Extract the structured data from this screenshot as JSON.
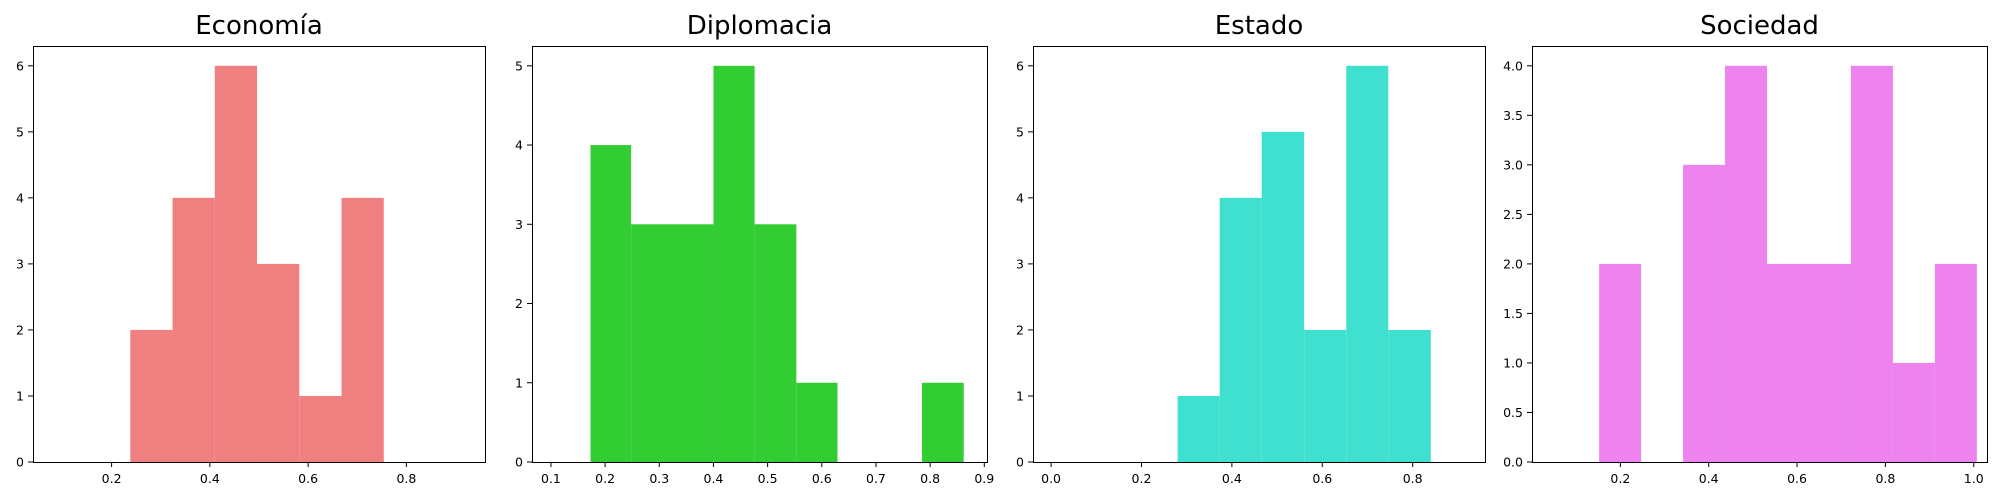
{
  "chart_data": [
    {
      "type": "bar",
      "subtype": "histogram",
      "title": "Economía",
      "color": "#f08080",
      "xlim": [
        0.04,
        0.96
      ],
      "ylim": [
        0,
        6.3
      ],
      "xticks": [
        0.2,
        0.4,
        0.6,
        0.8
      ],
      "xtick_labels": [
        "0.2",
        "0.4",
        "0.6",
        "0.8"
      ],
      "yticks": [
        0,
        1,
        2,
        3,
        4,
        5,
        6
      ],
      "ytick_labels": [
        "0",
        "1",
        "2",
        "3",
        "4",
        "5",
        "6"
      ],
      "bins": [
        {
          "x0": 0.238,
          "x1": 0.324,
          "count": 2
        },
        {
          "x0": 0.324,
          "x1": 0.41,
          "count": 4
        },
        {
          "x0": 0.41,
          "x1": 0.496,
          "count": 6
        },
        {
          "x0": 0.496,
          "x1": 0.582,
          "count": 3
        },
        {
          "x0": 0.582,
          "x1": 0.668,
          "count": 1
        },
        {
          "x0": 0.668,
          "x1": 0.754,
          "count": 4
        }
      ]
    },
    {
      "type": "bar",
      "subtype": "histogram",
      "title": "Diplomacia",
      "color": "#32cd32",
      "xlim": [
        0.065,
        0.905
      ],
      "ylim": [
        0,
        5.25
      ],
      "xticks": [
        0.1,
        0.2,
        0.3,
        0.4,
        0.5,
        0.6,
        0.7,
        0.8,
        0.9
      ],
      "xtick_labels": [
        "0.1",
        "0.2",
        "0.3",
        "0.4",
        "0.5",
        "0.6",
        "0.7",
        "0.8",
        "0.9"
      ],
      "yticks": [
        0,
        1,
        2,
        3,
        4,
        5
      ],
      "ytick_labels": [
        "0",
        "1",
        "2",
        "3",
        "4",
        "5"
      ],
      "bins": [
        {
          "x0": 0.173,
          "x1": 0.248,
          "count": 4
        },
        {
          "x0": 0.248,
          "x1": 0.4,
          "count": 3
        },
        {
          "x0": 0.4,
          "x1": 0.476,
          "count": 5
        },
        {
          "x0": 0.476,
          "x1": 0.553,
          "count": 3
        },
        {
          "x0": 0.553,
          "x1": 0.629,
          "count": 1
        },
        {
          "x0": 0.785,
          "x1": 0.862,
          "count": 1
        }
      ]
    },
    {
      "type": "bar",
      "subtype": "histogram",
      "title": "Estado",
      "color": "#40e0d0",
      "xlim": [
        -0.04,
        0.96
      ],
      "ylim": [
        0,
        6.3
      ],
      "xticks": [
        0.0,
        0.2,
        0.4,
        0.6,
        0.8
      ],
      "xtick_labels": [
        "0.0",
        "0.2",
        "0.4",
        "0.6",
        "0.8"
      ],
      "yticks": [
        0,
        1,
        2,
        3,
        4,
        5,
        6
      ],
      "ytick_labels": [
        "0",
        "1",
        "2",
        "3",
        "4",
        "5",
        "6"
      ],
      "bins": [
        {
          "x0": 0.28,
          "x1": 0.373,
          "count": 1
        },
        {
          "x0": 0.373,
          "x1": 0.466,
          "count": 4
        },
        {
          "x0": 0.466,
          "x1": 0.56,
          "count": 5
        },
        {
          "x0": 0.56,
          "x1": 0.653,
          "count": 2
        },
        {
          "x0": 0.653,
          "x1": 0.746,
          "count": 6
        },
        {
          "x0": 0.746,
          "x1": 0.84,
          "count": 2
        }
      ]
    },
    {
      "type": "bar",
      "subtype": "histogram",
      "title": "Sociedad",
      "color": "#ee82ee",
      "xlim": [
        0.0,
        1.03
      ],
      "ylim": [
        0,
        4.2
      ],
      "xticks": [
        0.2,
        0.4,
        0.6,
        0.8,
        1.0
      ],
      "xtick_labels": [
        "0.2",
        "0.4",
        "0.6",
        "0.8",
        "1.0"
      ],
      "yticks": [
        0,
        0.5,
        1,
        1.5,
        2,
        2.5,
        3,
        3.5,
        4
      ],
      "ytick_labels": [
        "0.0",
        "0.5",
        "1.0",
        "1.5",
        "2.0",
        "2.5",
        "3.0",
        "3.5",
        "4.0"
      ],
      "bins": [
        {
          "x0": 0.152,
          "x1": 0.247,
          "count": 2
        },
        {
          "x0": 0.342,
          "x1": 0.437,
          "count": 3
        },
        {
          "x0": 0.437,
          "x1": 0.532,
          "count": 4
        },
        {
          "x0": 0.532,
          "x1": 0.722,
          "count": 2
        },
        {
          "x0": 0.722,
          "x1": 0.817,
          "count": 4
        },
        {
          "x0": 0.817,
          "x1": 0.912,
          "count": 1
        },
        {
          "x0": 0.912,
          "x1": 1.007,
          "count": 2
        }
      ]
    }
  ]
}
